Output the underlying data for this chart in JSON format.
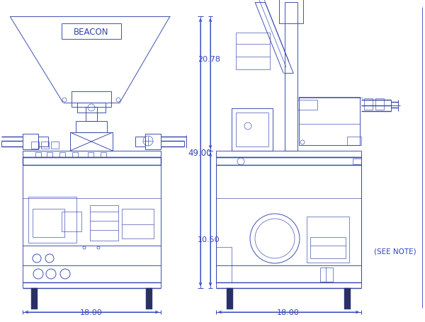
{
  "bg_color": "#ffffff",
  "line_color": "#3344aa",
  "dim_color": "#3344bb",
  "lw": 0.65,
  "lw_thick": 1.0,
  "lw_thin": 0.45,
  "figsize": [
    6.0,
    4.56
  ],
  "dpi": 100,
  "beacon_label": "BEACON",
  "dim_18_left": "18.00",
  "dim_18_right": "18.00",
  "dim_2078": "20.78",
  "dim_49": "49.00",
  "dim_1050": "10.50",
  "see_note": "(SEE NOTE)"
}
